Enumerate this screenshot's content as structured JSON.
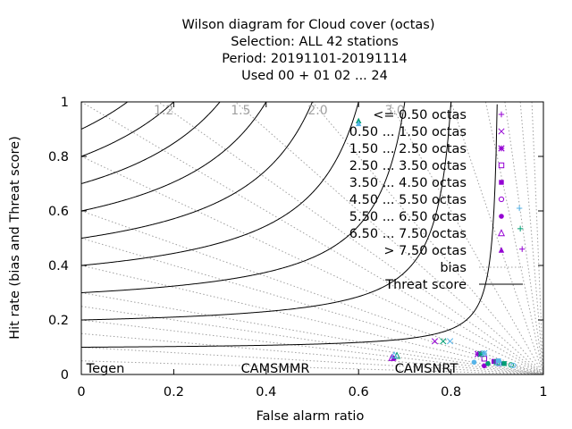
{
  "chart_data": {
    "type": "scatter",
    "title_lines": [
      "Wilson diagram  for Cloud cover (octas)",
      "Selection: ALL     42 stations",
      "Period: 20191101-20191114",
      "Used  00 + 01 02 ... 24"
    ],
    "xlabel": "False alarm ratio",
    "ylabel": "Hit rate (bias and Threat score)",
    "xlim": [
      0,
      1
    ],
    "ylim": [
      0,
      1
    ],
    "x_ticks": [
      "0",
      "0.2",
      "0.4",
      "0.6",
      "0.8",
      "1"
    ],
    "y_ticks": [
      "0",
      "0.2",
      "0.4",
      "0.6",
      "0.8",
      "1"
    ],
    "bias_values": [
      1.2,
      1.5,
      2.0,
      3.0
    ],
    "bias_labels": [
      "1.2",
      "1.5",
      "2.0",
      "3.0"
    ],
    "threat_scores": [
      0.1,
      0.2,
      0.3,
      0.4,
      0.5,
      0.6,
      0.7,
      0.8,
      0.9
    ],
    "legend_position": "top-right",
    "legend": [
      {
        "label": "<= 0.50 octas",
        "marker": "plus",
        "color": "#9400d3"
      },
      {
        "label": "0.50 ... 1.50 octas",
        "marker": "cross",
        "color": "#9400d3"
      },
      {
        "label": "1.50 ... 2.50 octas",
        "marker": "star",
        "color": "#9400d3"
      },
      {
        "label": "2.50 ... 3.50 octas",
        "marker": "square",
        "color": "#9400d3"
      },
      {
        "label": "3.50 ... 4.50 octas",
        "marker": "square-filled",
        "color": "#9400d3"
      },
      {
        "label": "4.50 ... 5.50 octas",
        "marker": "circle",
        "color": "#9400d3"
      },
      {
        "label": "5.50 ... 6.50 octas",
        "marker": "circle-filled",
        "color": "#9400d3"
      },
      {
        "label": "6.50 ... 7.50 octas",
        "marker": "triangle",
        "color": "#9400d3"
      },
      {
        "label": "> 7.50 octas",
        "marker": "triangle-filled",
        "color": "#9400d3"
      },
      {
        "label": "bias",
        "marker": "line-dotted",
        "color": "#a0a0a0"
      },
      {
        "label": "Threat score",
        "marker": "line-solid",
        "color": "#000000"
      }
    ],
    "models": [
      {
        "name": "Tegen",
        "color": "#9400d3"
      },
      {
        "name": "CAMSMMR",
        "color": "#009e73"
      },
      {
        "name": "CAMSNRT",
        "color": "#56b4e9"
      }
    ],
    "series": [
      {
        "model": "Tegen",
        "color": "#9400d3",
        "points": [
          {
            "class": 1,
            "marker": "cross",
            "x": 0.765,
            "y": 0.122
          },
          {
            "class": 2,
            "marker": "star",
            "x": 0.858,
            "y": 0.075
          },
          {
            "class": 3,
            "marker": "square",
            "x": 0.872,
            "y": 0.058
          },
          {
            "class": 4,
            "marker": "square-filled",
            "x": 0.893,
            "y": 0.048
          },
          {
            "class": 5,
            "marker": "circle",
            "x": 0.905,
            "y": 0.04
          },
          {
            "class": 6,
            "marker": "circle-filled",
            "x": 0.872,
            "y": 0.032
          },
          {
            "class": 7,
            "marker": "triangle",
            "x": 0.672,
            "y": 0.06
          },
          {
            "class": 8,
            "marker": "triangle-filled",
            "x": 0.676,
            "y": 0.06
          }
        ]
      },
      {
        "model": "CAMSMMR",
        "color": "#009e73",
        "points": [
          {
            "class": 1,
            "marker": "cross",
            "x": 0.783,
            "y": 0.122
          },
          {
            "class": 2,
            "marker": "star",
            "x": 0.865,
            "y": 0.075
          },
          {
            "class": 3,
            "marker": "square",
            "x": 0.899,
            "y": 0.045
          },
          {
            "class": 4,
            "marker": "square-filled",
            "x": 0.915,
            "y": 0.04
          },
          {
            "class": 5,
            "marker": "circle",
            "x": 0.93,
            "y": 0.035
          },
          {
            "class": 6,
            "marker": "circle-filled",
            "x": 0.88,
            "y": 0.04
          },
          {
            "class": 7,
            "marker": "triangle",
            "x": 0.683,
            "y": 0.068
          },
          {
            "class": 8,
            "marker": "triangle-filled",
            "x": 0.6,
            "y": 0.93
          }
        ]
      },
      {
        "model": "CAMSNRT",
        "color": "#56b4e9",
        "points": [
          {
            "class": 1,
            "marker": "cross",
            "x": 0.798,
            "y": 0.122
          },
          {
            "class": 2,
            "marker": "star",
            "x": 0.872,
            "y": 0.078
          },
          {
            "class": 3,
            "marker": "square",
            "x": 0.903,
            "y": 0.042
          },
          {
            "class": 4,
            "marker": "square-filled",
            "x": 0.903,
            "y": 0.05
          },
          {
            "class": 5,
            "marker": "circle",
            "x": 0.935,
            "y": 0.033
          },
          {
            "class": 6,
            "marker": "circle-filled",
            "x": 0.85,
            "y": 0.045
          },
          {
            "class": 7,
            "marker": "triangle",
            "x": 0.677,
            "y": 0.07
          },
          {
            "class": 8,
            "marker": "triangle-filled",
            "x": 0.6,
            "y": 0.92
          }
        ]
      }
    ]
  }
}
